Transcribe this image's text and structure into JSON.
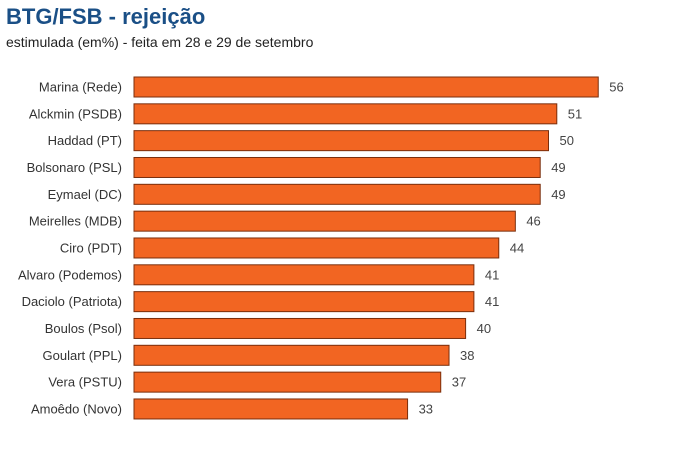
{
  "title": "BTG/FSB - rejeição",
  "subtitle": "estimulada (em%) - feita em 28 e 29 de setembro",
  "colors": {
    "bar": "#f26522",
    "bar_stroke": "#7a2e0c",
    "title": "#1a4f86"
  },
  "chart_data": {
    "type": "bar",
    "orientation": "horizontal",
    "title": "BTG/FSB - rejeição",
    "subtitle": "estimulada (em%) - feita em 28 e 29 de setembro",
    "xlabel": "",
    "ylabel": "",
    "xlim": [
      0,
      56
    ],
    "grid": false,
    "legend": "none",
    "data_labels": true,
    "categories": [
      "Marina (Rede)",
      "Alckmin (PSDB)",
      "Haddad (PT)",
      "Bolsonaro (PSL)",
      "Eymael (DC)",
      "Meirelles (MDB)",
      "Ciro (PDT)",
      "Alvaro (Podemos)",
      "Daciolo (Patriota)",
      "Boulos (Psol)",
      "Goulart (PPL)",
      "Vera (PSTU)",
      "Amoêdo (Novo)"
    ],
    "values": [
      56,
      51,
      50,
      49,
      49,
      46,
      44,
      41,
      41,
      40,
      38,
      37,
      33
    ]
  }
}
